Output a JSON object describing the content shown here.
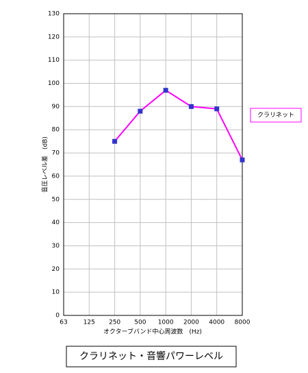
{
  "chart_data": {
    "type": "line",
    "title": "クラリネット・音響パワーレベル",
    "x_label": "オクターブバンド中心周波数　(Hz)",
    "y_label": "音圧レベル差　(dB)",
    "categories": [
      "63",
      "125",
      "250",
      "500",
      "1000",
      "2000",
      "4000",
      "8000"
    ],
    "series": [
      {
        "name": "クラリネット",
        "color": "#ff00ff",
        "marker_color": "#3333cc",
        "values": [
          null,
          null,
          75,
          88,
          97,
          90,
          89,
          67
        ]
      }
    ],
    "ylim": [
      0,
      130
    ],
    "yticks": [
      0,
      10,
      20,
      30,
      40,
      50,
      60,
      70,
      80,
      90,
      100,
      110,
      120,
      130
    ],
    "grid": true,
    "legend": "right"
  }
}
